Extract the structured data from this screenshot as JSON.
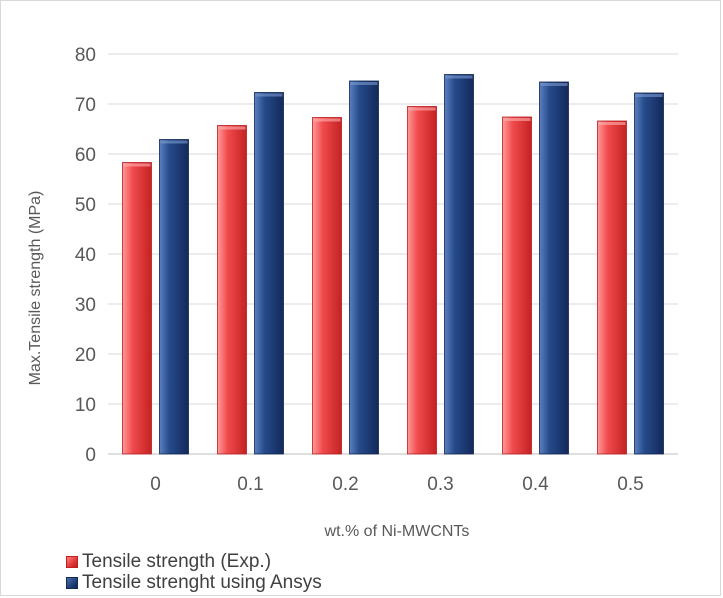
{
  "chart_data": {
    "type": "bar",
    "title": "",
    "xlabel": "wt.% of Ni-MWCNTs",
    "ylabel": "Max.Tensile strength (MPa)",
    "categories": [
      "0",
      "0.1",
      "0.2",
      "0.3",
      "0.4",
      "0.5"
    ],
    "ylim": [
      0,
      80
    ],
    "yticks": [
      "0",
      "10",
      "20",
      "30",
      "40",
      "50",
      "60",
      "70",
      "80"
    ],
    "grid": true,
    "legend_position": "bottom-left",
    "series": [
      {
        "name": "Tensile strength (Exp.)",
        "color": "#e8393b",
        "values": [
          58.3,
          65.7,
          67.3,
          69.5,
          67.4,
          66.6
        ]
      },
      {
        "name": "Tensile strenght using Ansys",
        "color": "#1f3f78",
        "values": [
          62.9,
          72.3,
          74.6,
          75.9,
          74.4,
          72.2
        ]
      }
    ]
  }
}
